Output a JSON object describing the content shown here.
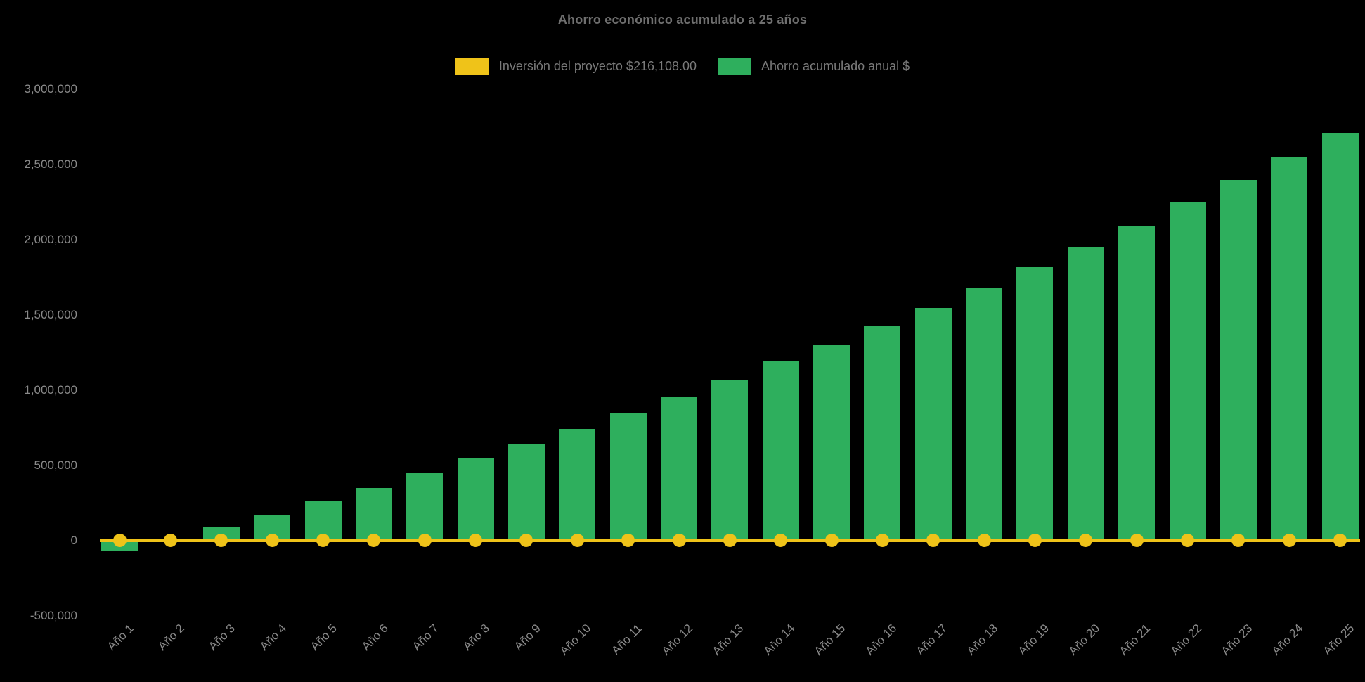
{
  "chart": {
    "title": "Ahorro económico acumulado a 25 años",
    "background_color": "#000000",
    "text_color": "#8a8a8a",
    "title_color": "#6f6f6f",
    "legend": [
      {
        "label": "Inversión del proyecto $216,108.00",
        "color": "#EFC319",
        "type": "line"
      },
      {
        "label": "Ahorro acumulado anual $",
        "color": "#2EAF5D",
        "type": "bar"
      }
    ]
  },
  "chart_data": {
    "type": "bar",
    "title": "Ahorro económico acumulado a 25 años",
    "xlabel": "",
    "ylabel": "",
    "ylim": [
      -500000,
      3000000
    ],
    "grid": false,
    "legend_position": "top",
    "categories": [
      "Año 1",
      "Año 2",
      "Año 3",
      "Año 4",
      "Año 5",
      "Año 6",
      "Año 7",
      "Año 8",
      "Año 9",
      "Año 10",
      "Año 11",
      "Año 12",
      "Año 13",
      "Año 14",
      "Año 15",
      "Año 16",
      "Año 17",
      "Año 18",
      "Año 19",
      "Año 20",
      "Año 21",
      "Año 22",
      "Año 23",
      "Año 24",
      "Año 25"
    ],
    "series": [
      {
        "name": "Ahorro acumulado anual $",
        "type": "bar",
        "color": "#2EAF5D",
        "values": [
          -70000,
          8000,
          86000,
          168000,
          262000,
          347000,
          445000,
          543000,
          640000,
          742000,
          850000,
          957000,
          1069000,
          1190000,
          1302000,
          1424000,
          1545000,
          1676000,
          1816000,
          1953000,
          2090000,
          2244000,
          2393000,
          2548000,
          2706000
        ]
      },
      {
        "name": "Inversión del proyecto $216,108.00",
        "type": "line",
        "color": "#EFC319",
        "stated_value": 216108,
        "plotted_at_value": 0,
        "values": [
          0,
          0,
          0,
          0,
          0,
          0,
          0,
          0,
          0,
          0,
          0,
          0,
          0,
          0,
          0,
          0,
          0,
          0,
          0,
          0,
          0,
          0,
          0,
          0,
          0
        ]
      }
    ],
    "y_ticks": {
      "values": [
        3000000,
        2500000,
        2000000,
        1500000,
        1000000,
        500000,
        0,
        -500000
      ],
      "labels": [
        "3,000,000",
        "2,500,000",
        "2,000,000",
        "1,500,000",
        "1,000,000",
        "500,000",
        "0",
        "-500,000"
      ]
    }
  }
}
